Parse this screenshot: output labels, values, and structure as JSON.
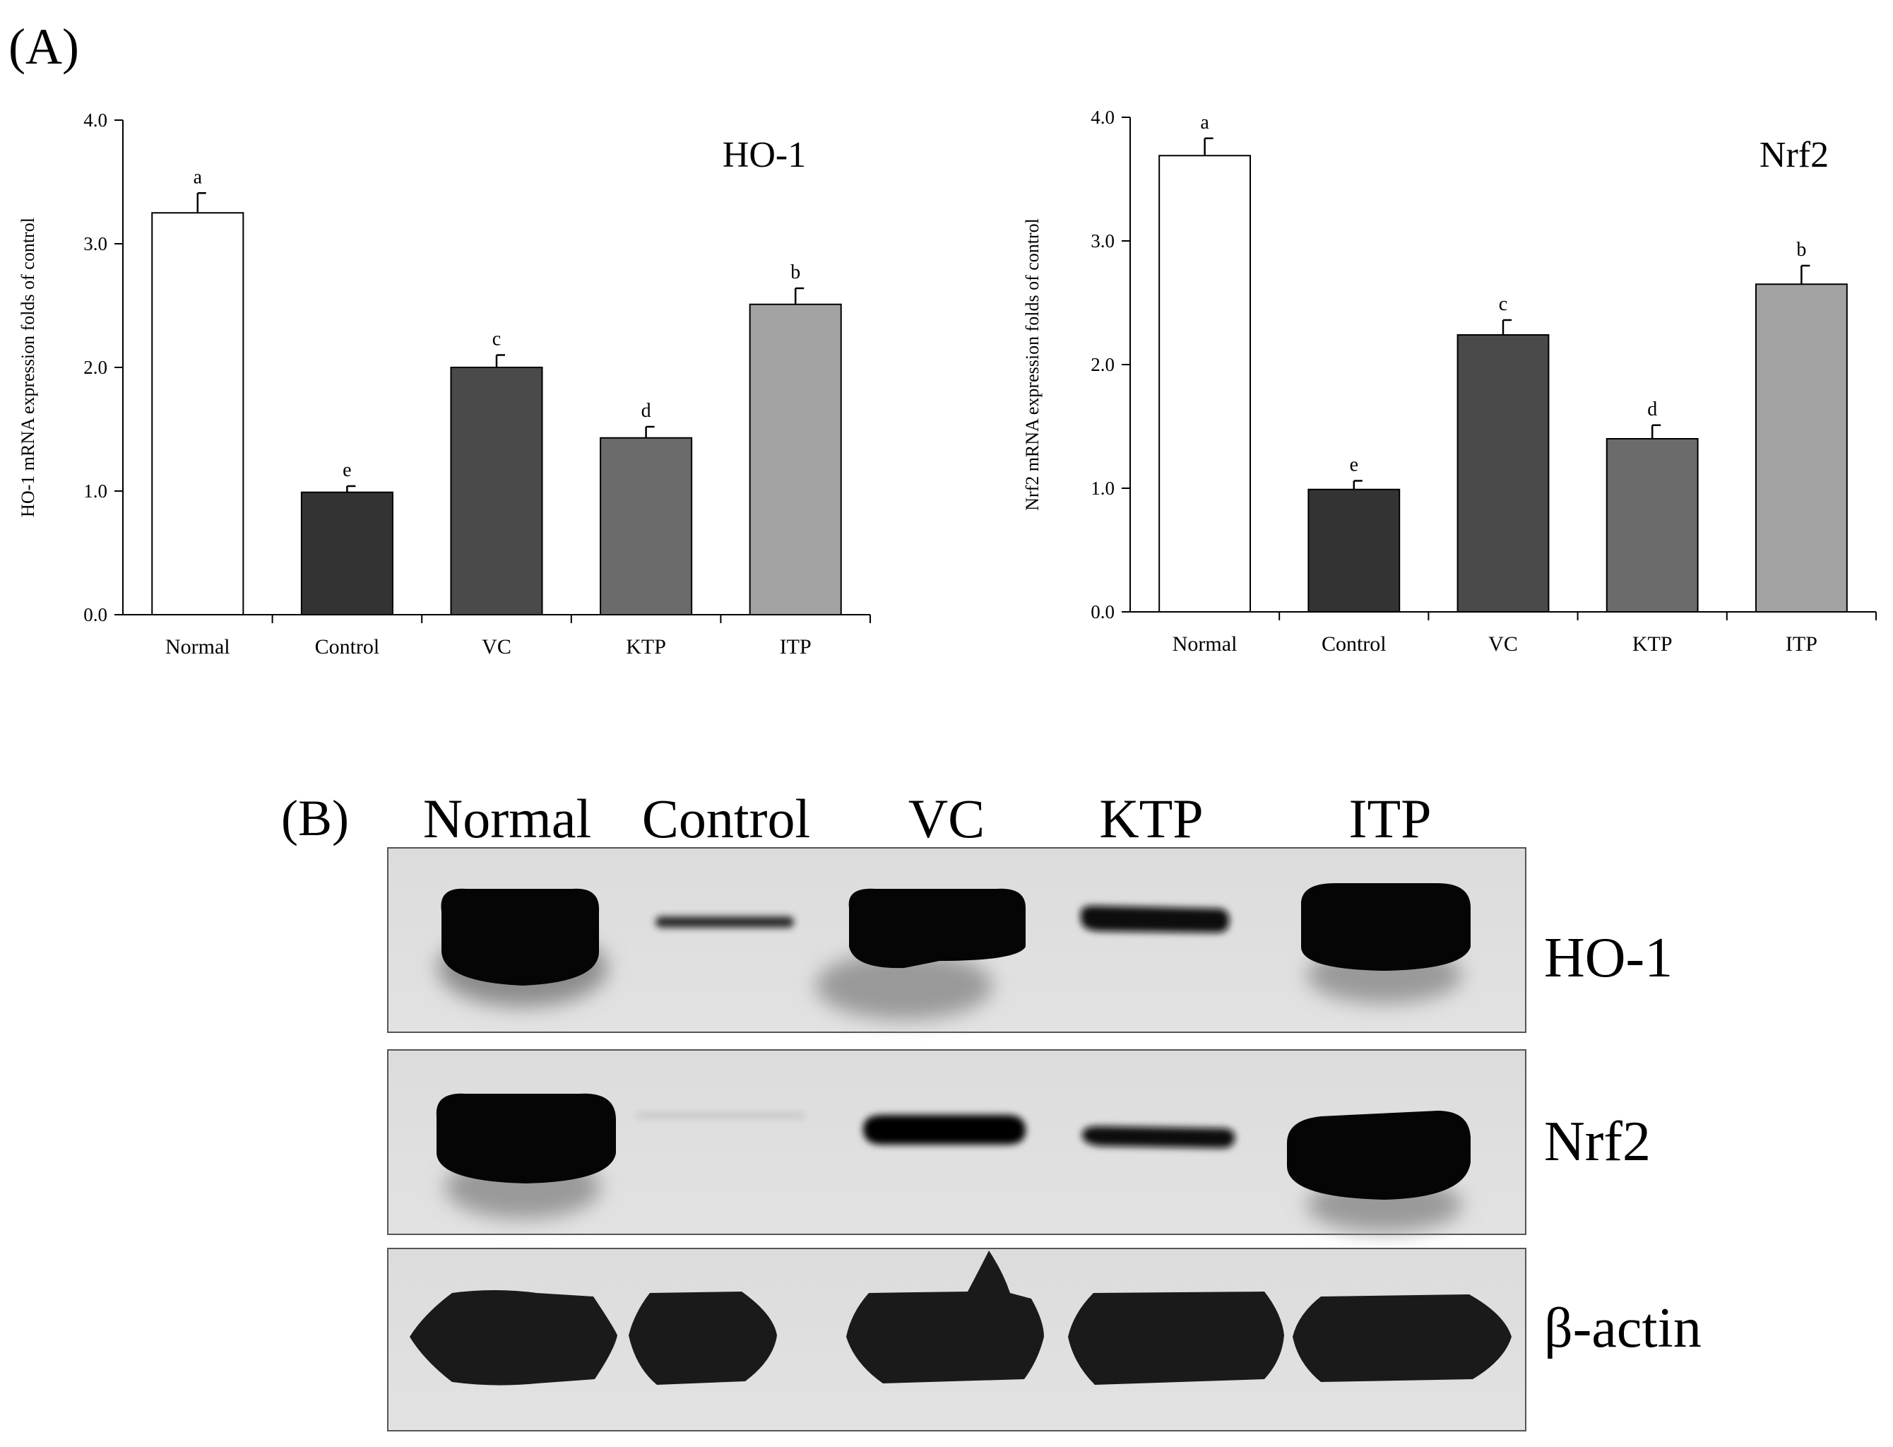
{
  "panel_a": {
    "label": "(A)"
  },
  "panel_b": {
    "label": "(B)",
    "lanes": [
      "Normal",
      "Control",
      "VC",
      "KTP",
      "ITP"
    ],
    "proteins": [
      "HO-1",
      "Nrf2",
      "β-actin"
    ]
  },
  "chart_data": [
    {
      "type": "bar",
      "title": "HO-1",
      "ylabel": "HO-1 mRNA expression folds of control",
      "xlabel": "",
      "categories": [
        "Normal",
        "Control",
        "VC",
        "KTP",
        "ITP"
      ],
      "values": [
        3.25,
        0.99,
        2.0,
        1.43,
        2.51
      ],
      "errors": [
        0.16,
        0.05,
        0.1,
        0.09,
        0.13
      ],
      "significance": [
        "a",
        "e",
        "c",
        "d",
        "b"
      ],
      "ylim": [
        0,
        4
      ],
      "yticks": [
        "0.0",
        "1.0",
        "2.0",
        "3.0",
        "4.0"
      ],
      "grid": false,
      "colors": [
        "#ffffff",
        "#333333",
        "#4a4a4a",
        "#6b6b6b",
        "#a3a3a3"
      ]
    },
    {
      "type": "bar",
      "title": "Nrf2",
      "ylabel": "Nrf2 mRNA expression folds of control",
      "xlabel": "",
      "categories": [
        "Normal",
        "Control",
        "VC",
        "KTP",
        "ITP"
      ],
      "values": [
        3.69,
        0.99,
        2.24,
        1.4,
        2.65
      ],
      "errors": [
        0.14,
        0.07,
        0.12,
        0.11,
        0.15
      ],
      "significance": [
        "a",
        "e",
        "c",
        "d",
        "b"
      ],
      "ylim": [
        0,
        4
      ],
      "yticks": [
        "0.0",
        "1.0",
        "2.0",
        "3.0",
        "4.0"
      ],
      "grid": false,
      "colors": [
        "#ffffff",
        "#333333",
        "#4a4a4a",
        "#6b6b6b",
        "#a3a3a3"
      ]
    }
  ]
}
